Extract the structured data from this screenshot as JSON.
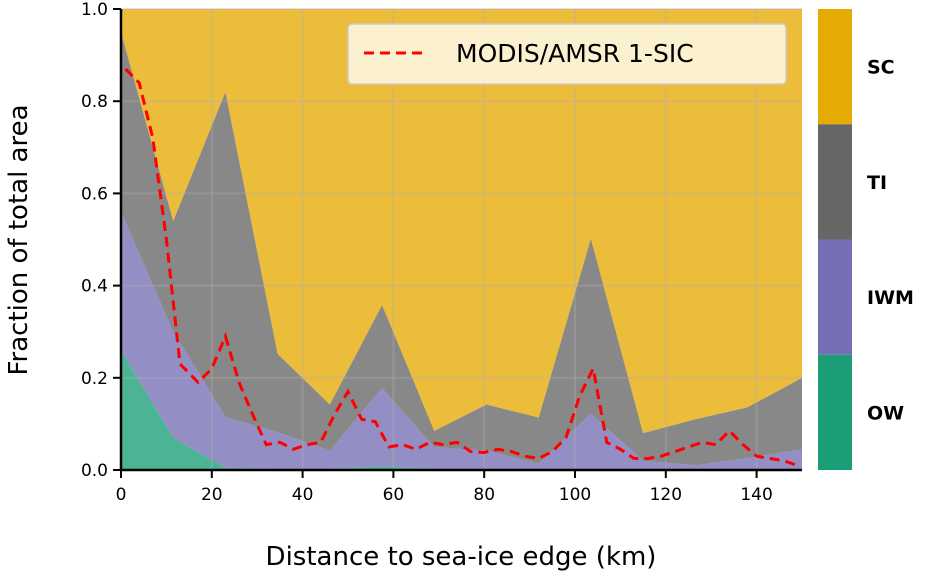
{
  "chart_data": {
    "type": "area",
    "xlabel": "Distance to sea-ice edge (km)",
    "ylabel": "Fraction of total area",
    "xlim": [
      0,
      150
    ],
    "ylim": [
      0,
      1.0
    ],
    "xticks": [
      "0",
      "20",
      "40",
      "60",
      "80",
      "100",
      "120",
      "140"
    ],
    "yticks": [
      "0.0",
      "0.2",
      "0.4",
      "0.6",
      "0.8",
      "1.0"
    ],
    "grid": true,
    "legend_position": "top-right",
    "x": [
      0,
      11.5,
      23,
      34.5,
      46,
      57.5,
      69,
      80.5,
      92,
      103.5,
      115,
      126.5,
      138,
      150
    ],
    "series": [
      {
        "key": "OW",
        "color": "#1b9e77",
        "values": [
          0.26,
          0.07,
          0.005,
          0.002,
          0.002,
          0.008,
          0.002,
          0.002,
          0.002,
          0.002,
          0.002,
          0.002,
          0.002,
          0.002
        ]
      },
      {
        "key": "IWM",
        "color": "#7570b3",
        "values": [
          0.3,
          0.23,
          0.11,
          0.08,
          0.04,
          0.17,
          0.048,
          0.04,
          0.012,
          0.12,
          0.018,
          0.008,
          0.024,
          0.043
        ]
      },
      {
        "key": "TI",
        "color": "#666666",
        "values": [
          0.39,
          0.24,
          0.705,
          0.17,
          0.1,
          0.18,
          0.035,
          0.1,
          0.1,
          0.38,
          0.06,
          0.1,
          0.11,
          0.155
        ]
      },
      {
        "key": "SC",
        "color": "#e6ab02",
        "values": [
          0.05,
          0.46,
          0.18,
          0.748,
          0.858,
          0.642,
          0.915,
          0.858,
          0.886,
          0.498,
          0.92,
          0.89,
          0.864,
          0.8
        ]
      }
    ],
    "line": {
      "name": "MODIS/AMSR 1-SIC",
      "color": "#ff0000",
      "x": [
        1,
        4,
        7,
        10,
        13,
        17,
        20,
        23,
        26,
        29,
        32,
        35,
        38,
        41,
        44,
        47,
        50,
        53,
        56,
        59,
        62,
        65,
        68,
        71,
        74,
        77,
        80,
        83,
        86,
        89,
        92,
        95,
        98,
        101,
        104,
        107,
        110,
        113,
        116,
        119,
        122,
        125,
        128,
        131,
        134,
        137,
        140,
        143,
        146,
        149
      ],
      "y": [
        0.87,
        0.84,
        0.72,
        0.5,
        0.23,
        0.19,
        0.22,
        0.29,
        0.19,
        0.12,
        0.055,
        0.06,
        0.045,
        0.055,
        0.06,
        0.12,
        0.17,
        0.11,
        0.105,
        0.05,
        0.055,
        0.045,
        0.06,
        0.055,
        0.06,
        0.04,
        0.038,
        0.045,
        0.04,
        0.03,
        0.025,
        0.04,
        0.07,
        0.16,
        0.22,
        0.06,
        0.045,
        0.025,
        0.025,
        0.03,
        0.04,
        0.05,
        0.06,
        0.055,
        0.085,
        0.055,
        0.03,
        0.025,
        0.02,
        0.01
      ]
    },
    "colorbar": {
      "labels": [
        "SC",
        "TI",
        "IWM",
        "OW"
      ],
      "colors": [
        "#e6ab02",
        "#666666",
        "#7570b3",
        "#1b9e77"
      ]
    }
  }
}
